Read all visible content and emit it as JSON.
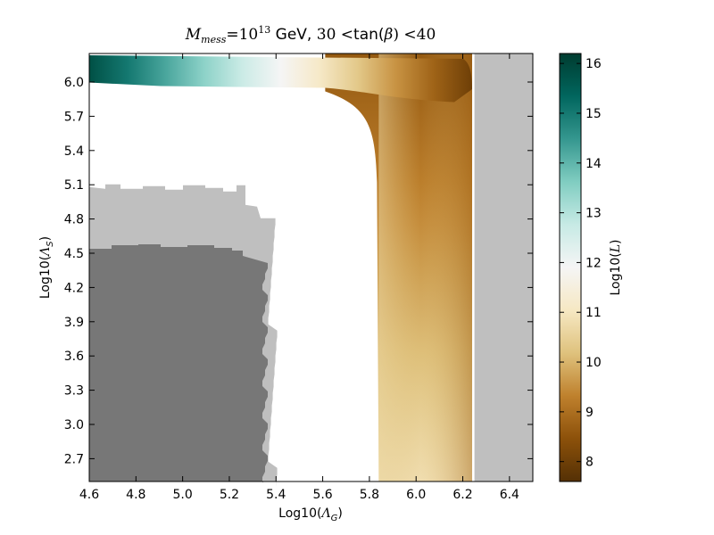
{
  "chart_data": {
    "type": "heatmap",
    "title": "M_mess = 10^13  GeV, 30 < tan(β) < 40",
    "title_parts": {
      "m": "M",
      "m_sub": "mess",
      "eq": "=10",
      "exp": "13",
      "gev": "  GeV, ",
      "range_pre": "30 <",
      "tan": "tan(",
      "beta": "β",
      "range_post": ") <40"
    },
    "xlabel": "Log10(Λ_G)",
    "xlabel_parts": {
      "pre": "Log10(",
      "sym": "Λ",
      "sub": "G",
      "post": ")"
    },
    "ylabel": "Log10(Λ_S)",
    "ylabel_parts": {
      "pre": "Log10(",
      "sym": "Λ",
      "sub": "S",
      "post": ")"
    },
    "xlim": [
      4.6,
      6.5
    ],
    "ylim": [
      2.5,
      6.25
    ],
    "x_ticks": [
      "4.6",
      "4.8",
      "5.0",
      "5.2",
      "5.4",
      "5.6",
      "5.8",
      "6.0",
      "6.2",
      "6.4"
    ],
    "y_ticks": [
      "2.7",
      "3.0",
      "3.3",
      "3.6",
      "3.9",
      "4.2",
      "4.5",
      "4.8",
      "5.1",
      "5.4",
      "5.7",
      "6.0"
    ],
    "colorbar": {
      "label": "Log10(L)",
      "label_parts": {
        "pre": "Log10(",
        "sym": "L",
        "post": ")"
      },
      "range": [
        7.6,
        16.2
      ],
      "ticks": [
        "8",
        "9",
        "10",
        "11",
        "12",
        "13",
        "14",
        "15",
        "16"
      ],
      "colormap": "BrBG",
      "stops": [
        "#543005",
        "#8c510a",
        "#bf812d",
        "#dfc27d",
        "#f6e8c3",
        "#f5f5f5",
        "#c7eae5",
        "#80cdc1",
        "#35978f",
        "#01665e",
        "#003c30"
      ]
    },
    "regions": [
      {
        "kind": "excluded-light",
        "color": "#bfbfbf",
        "x": [
          6.25,
          6.5
        ],
        "y": [
          2.5,
          6.25
        ]
      },
      {
        "kind": "excluded-light",
        "color": "#bfbfbf",
        "x": [
          4.6,
          5.4
        ],
        "y": [
          2.5,
          5.08
        ]
      },
      {
        "kind": "excluded-dark",
        "color": "#777777",
        "x": [
          4.6,
          5.36
        ],
        "y": [
          2.5,
          4.57
        ]
      },
      {
        "kind": "likelihood-band",
        "x": [
          5.84,
          6.24
        ],
        "y": [
          2.5,
          6.25
        ],
        "log10L": [
          8.6,
          10.8
        ]
      },
      {
        "kind": "likelihood-band",
        "x": [
          4.6,
          6.24
        ],
        "y": [
          5.98,
          6.25
        ],
        "log10L": [
          8.0,
          15.8
        ]
      }
    ]
  }
}
